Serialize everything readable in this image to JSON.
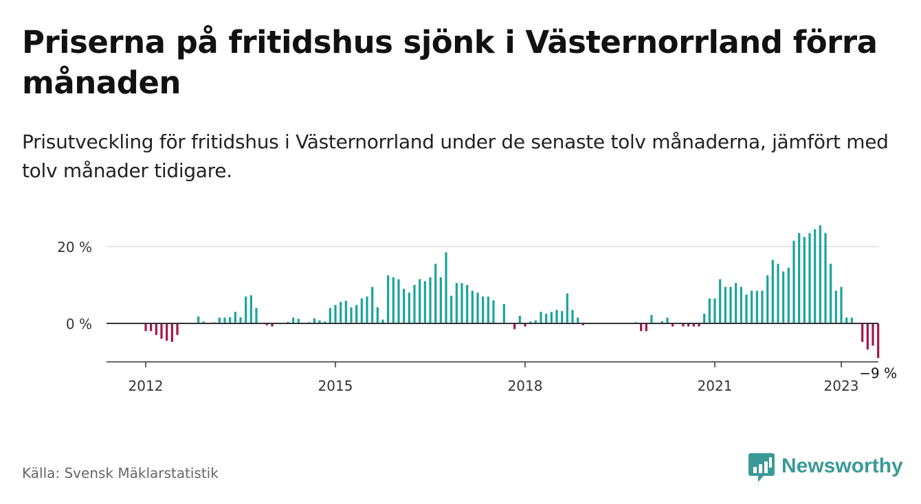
{
  "header": {
    "title": "Priserna på fritidshus sjönk i Västernorrland förra månaden",
    "subtitle": "Prisutveckling för fritidshus i Västernorrland under de senaste tolv månaderna, jämfört med tolv månader tidigare."
  },
  "footer": {
    "source": "Källa: Svensk Mäklarstatistik",
    "brand": "Newsworthy"
  },
  "colors": {
    "positive": "#1ba39c",
    "negative": "#a3154a",
    "grid": "#dddddd",
    "zero_line": "#333333",
    "brand": "#3a9a97"
  },
  "chart_data": {
    "type": "bar",
    "title": "Priserna på fritidshus sjönk i Västernorrland förra månaden",
    "xlabel": "",
    "ylabel": "",
    "y_unit": "%",
    "ylim": [
      -10,
      25
    ],
    "y_ticks": [
      0,
      20
    ],
    "y_tick_labels": [
      "0 %",
      "20 %"
    ],
    "x_ticks": [
      "2012",
      "2015",
      "2018",
      "2021",
      "2023"
    ],
    "grid": true,
    "start_date": "2012-01",
    "values": [
      -2.0,
      -2.0,
      -3.0,
      -4.0,
      -4.5,
      -4.8,
      -3.0,
      0,
      0,
      0,
      1.8,
      0.5,
      0,
      0.3,
      1.5,
      1.5,
      1.6,
      3.0,
      1.6,
      7.0,
      7.3,
      4.0,
      0,
      -0.5,
      -0.8,
      0,
      0,
      0.4,
      1.5,
      1.2,
      0,
      0.3,
      1.3,
      0.8,
      0.5,
      4.0,
      4.8,
      5.6,
      5.9,
      4.2,
      4.8,
      6.5,
      7.0,
      9.5,
      4.2,
      1.0,
      12.5,
      12.0,
      11.5,
      9.0,
      8.0,
      10.0,
      11.5,
      11.0,
      12.0,
      15.5,
      12.0,
      18.5,
      7.2,
      10.5,
      10.5,
      10.0,
      8.5,
      8.0,
      7.0,
      7.0,
      6.0,
      0,
      5.0,
      0,
      -1.5,
      2.0,
      -0.8,
      0.5,
      0.8,
      3.0,
      2.5,
      3.0,
      3.5,
      3.2,
      7.8,
      3.5,
      1.5,
      -0.5,
      0,
      0,
      0,
      0,
      0,
      0,
      0,
      0,
      0,
      0.3,
      -2.0,
      -2.0,
      2.2,
      0,
      0.6,
      1.5,
      -0.8,
      0,
      -0.8,
      -0.8,
      -0.8,
      -0.8,
      2.5,
      6.5,
      6.5,
      11.5,
      9.5,
      9.5,
      10.5,
      9.5,
      7.5,
      8.5,
      8.5,
      8.5,
      12.5,
      16.5,
      15.5,
      13.5,
      14.5,
      21.5,
      23.5,
      22.5,
      23.5,
      24.5,
      25.5,
      23.5,
      15.5,
      8.5,
      9.5,
      1.5,
      1.5,
      0,
      -4.8,
      -6.8,
      -5.8,
      -9.0
    ],
    "last_value_label": "−9 %"
  }
}
